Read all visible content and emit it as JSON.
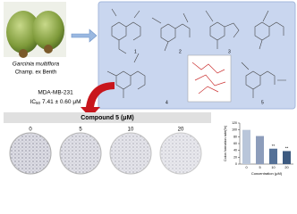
{
  "source": {
    "species": "Garcinia multiflora",
    "authority": "Champ. ex Benth"
  },
  "compounds": [
    "1",
    "2",
    "3",
    "4",
    "5"
  ],
  "assay": {
    "cell_line": "MDA-MB-231",
    "ic50_label": "IC",
    "ic50_sub": "50",
    "ic50_value": "7.41 ± 0.60 μM"
  },
  "panel_title": "Compound 5 (μM)",
  "dishes": [
    "0",
    "5",
    "10",
    "20"
  ],
  "chart_data": {
    "type": "bar",
    "ylabel": "Colon formation rate(%)",
    "xlabel": "Concentration (μM)",
    "categories": [
      "0",
      "5",
      "10",
      "20"
    ],
    "values": [
      100,
      82,
      45,
      38
    ],
    "colors": [
      "#b9c6da",
      "#8d9dbb",
      "#557197",
      "#3d5a80"
    ],
    "annotations": [
      null,
      null,
      "**",
      "**"
    ],
    "ylim": [
      0,
      120
    ],
    "yticks": [
      0,
      20,
      40,
      60,
      80,
      100,
      120
    ]
  }
}
